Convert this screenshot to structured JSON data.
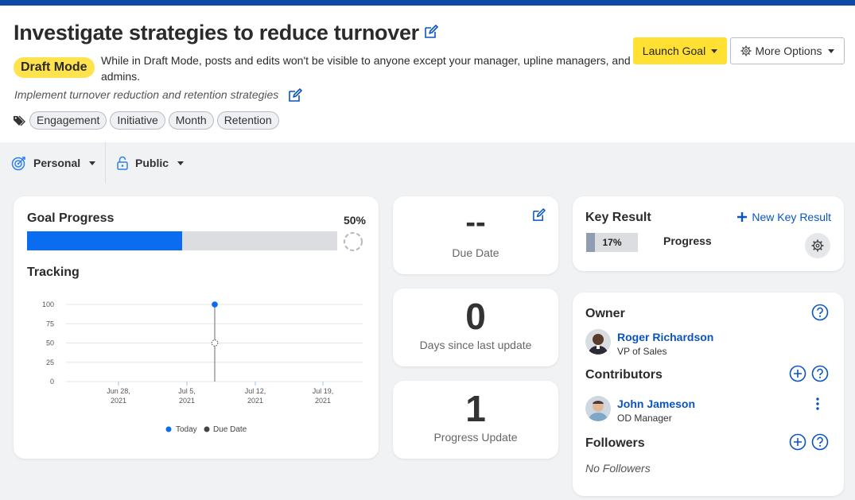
{
  "goal": {
    "title": "Investigate strategies to reduce turnover",
    "status_badge": "Draft Mode",
    "draft_message": "While in Draft Mode, posts and edits won't be visible to anyone except your manager, upline managers, and admins.",
    "description": "Implement turnover reduction and retention strategies",
    "tags": [
      "Engagement",
      "Initiative",
      "Month",
      "Retention"
    ]
  },
  "actions": {
    "launch_label": "Launch Goal",
    "more_label": "More Options"
  },
  "filters": {
    "type_label": "Personal",
    "visibility_label": "Public"
  },
  "progress_card": {
    "title": "Goal Progress",
    "percent_label": "50%",
    "percent_value": 0.5,
    "tracking_title": "Tracking"
  },
  "chart_data": {
    "type": "line",
    "y_ticks": [
      "100",
      "75",
      "50",
      "25",
      "0"
    ],
    "ylim": [
      0,
      100
    ],
    "x_ticks": [
      {
        "line1": "Jun 28,",
        "line2": "2021"
      },
      {
        "line1": "Jul 5,",
        "line2": "2021"
      },
      {
        "line1": "Jul 12,",
        "line2": "2021"
      },
      {
        "line1": "Jul 19,",
        "line2": "2021"
      }
    ],
    "series": [
      {
        "name": "Today",
        "color": "#0a6cf0"
      },
      {
        "name": "Due Date",
        "color": "#444444"
      }
    ],
    "points": {
      "today": {
        "y": 100
      },
      "due_date": {
        "y": 50
      }
    },
    "grid": true,
    "legend_position": "bottom"
  },
  "due_date_card": {
    "value": "--",
    "label": "Due Date"
  },
  "days_card": {
    "value": "0",
    "label": "Days since last update"
  },
  "updates_card": {
    "value": "1",
    "label": "Progress Update"
  },
  "key_result_card": {
    "title": "Key Result",
    "new_label": "New Key Result",
    "items": [
      {
        "percent_label": "17%",
        "percent_value": 0.17,
        "name": "Progress"
      }
    ]
  },
  "people_card": {
    "owner_title": "Owner",
    "owner": {
      "name": "Roger Richardson",
      "role": "VP of Sales"
    },
    "contributors_title": "Contributors",
    "contributors": [
      {
        "name": "John Jameson",
        "role": "OD Manager"
      }
    ],
    "followers_title": "Followers",
    "followers_empty": "No Followers"
  },
  "colors": {
    "brand_blue": "#0a4aa6",
    "accent_blue": "#0a6cf0",
    "draft_yellow": "#ffe34d",
    "launch_yellow": "#ffe033"
  }
}
